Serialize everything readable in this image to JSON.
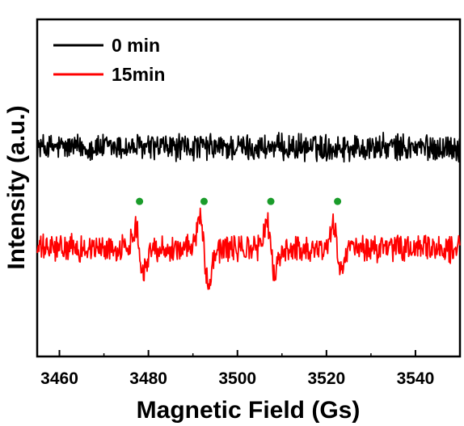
{
  "chart_data": {
    "type": "line",
    "xlabel": "Magnetic Field (Gs)",
    "ylabel": "Intensity (a.u.)",
    "xlim": [
      3455,
      3550
    ],
    "x_ticks": [
      "3460",
      "3480",
      "3500",
      "3520",
      "3540"
    ],
    "y_ticks_labeled": false,
    "grid": false,
    "legend_position": "top-left",
    "series": [
      {
        "name": "0 min",
        "color": "#000000",
        "baseline": 0.62,
        "noise": 0.035,
        "features": []
      },
      {
        "name": "15min",
        "color": "#ff0000",
        "baseline": 0.32,
        "noise": 0.035,
        "features": [
          {
            "x": 3478,
            "amplitude": 0.07
          },
          {
            "x": 3492.5,
            "amplitude": 0.11
          },
          {
            "x": 3507.5,
            "amplitude": 0.08
          },
          {
            "x": 3522.5,
            "amplitude": 0.07
          }
        ]
      }
    ],
    "markers": {
      "color": "#1a9c2a",
      "x": [
        3478,
        3492.5,
        3507.5,
        3522.5
      ],
      "y": 0.46
    }
  }
}
